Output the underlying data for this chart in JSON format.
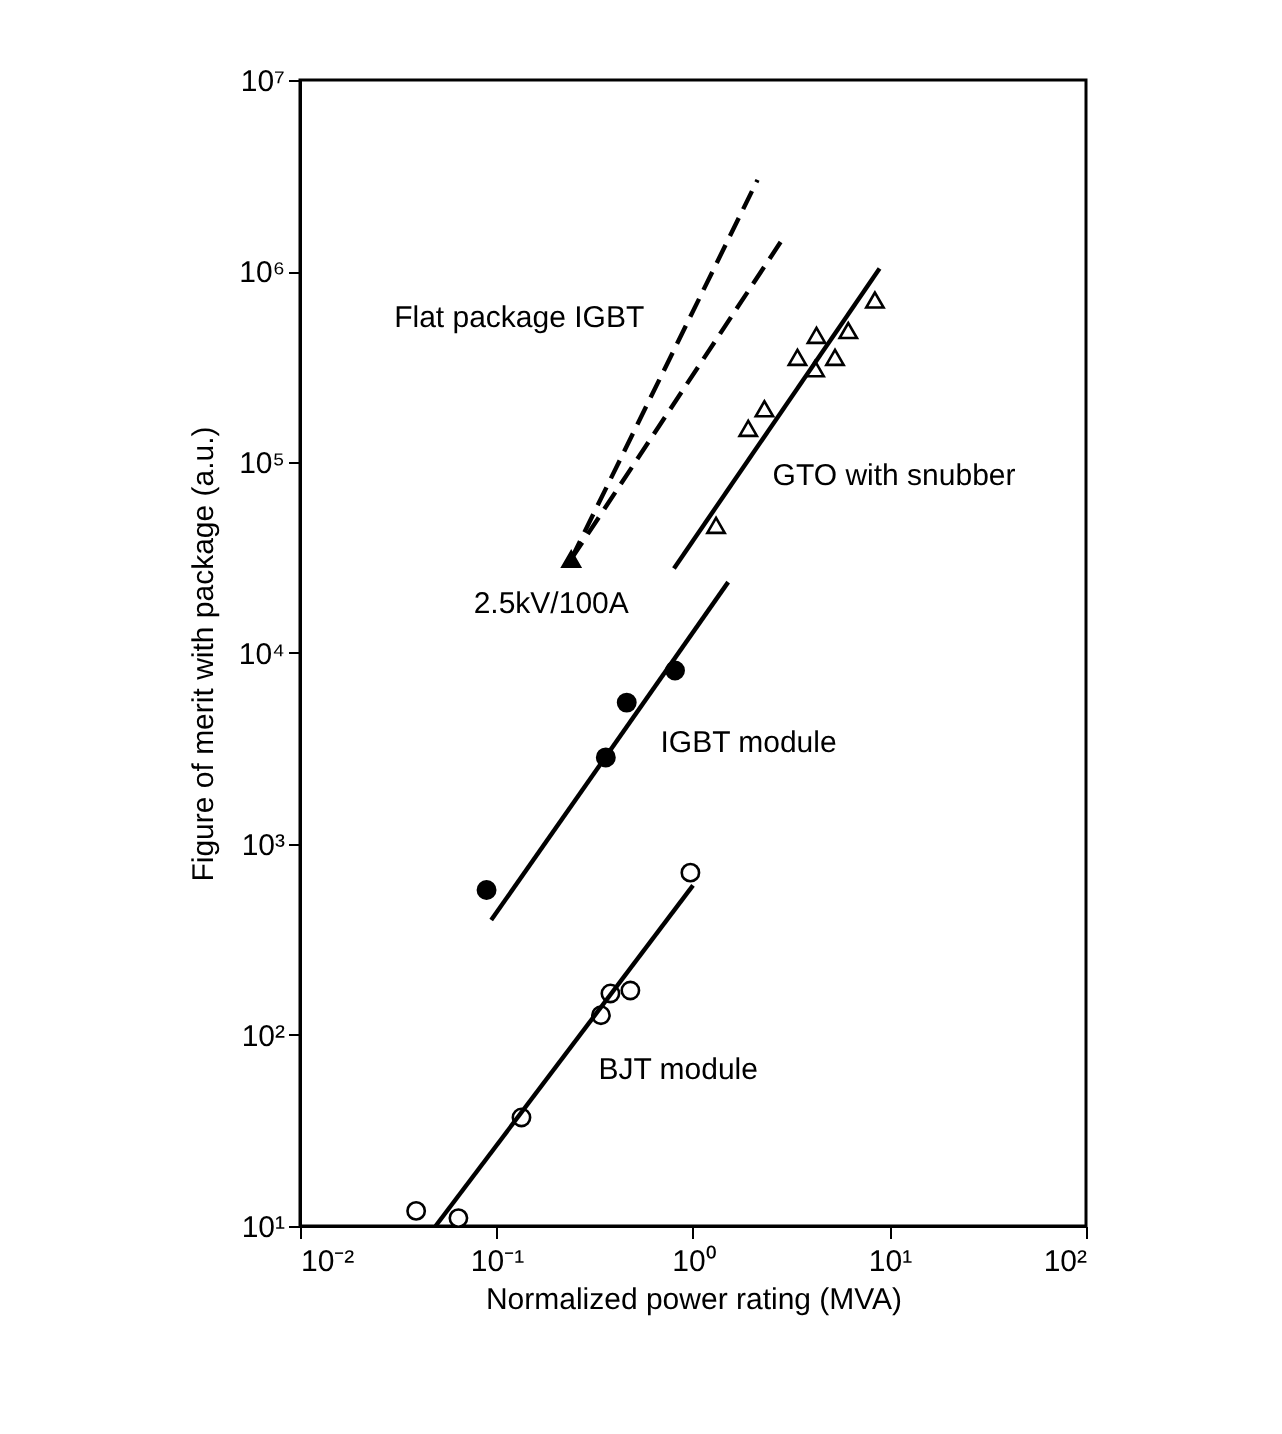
{
  "chart_data": {
    "type": "scatter",
    "xlabel": "Normalized power rating (MVA)",
    "ylabel": "Figure of merit with package (a.u.)",
    "log": "xy",
    "grid": false,
    "xlim": [
      0.01,
      100
    ],
    "ylim": [
      10,
      10000000
    ],
    "xticks": [
      {
        "value": 0.01,
        "label": "10⁻²"
      },
      {
        "value": 0.1,
        "label": "10⁻¹"
      },
      {
        "value": 1,
        "label": "10⁰"
      },
      {
        "value": 10,
        "label": "10¹"
      },
      {
        "value": 100,
        "label": "10²"
      }
    ],
    "yticks": [
      {
        "value": 10,
        "label": "10¹"
      },
      {
        "value": 100,
        "label": "10²"
      },
      {
        "value": 1000,
        "label": "10³"
      },
      {
        "value": 10000,
        "label": "10⁴"
      },
      {
        "value": 100000,
        "label": "10⁵"
      },
      {
        "value": 1000000,
        "label": "10⁶"
      },
      {
        "value": 10000000,
        "label": "10⁷"
      }
    ],
    "annotations": [
      {
        "text": "2.5kV/100A",
        "x": 0.24,
        "y": 31000
      }
    ],
    "series": [
      {
        "name": "Flat package IGBT",
        "type": "line",
        "line_style": "dashed",
        "color": "#000000",
        "x": [
          0.24,
          2.13
        ],
        "values": [
          31000,
          3000000
        ]
      },
      {
        "type": "line",
        "line_style": "dashed",
        "color": "#000000",
        "x": [
          0.24,
          2.87
        ],
        "values": [
          31000,
          1480000
        ]
      },
      {
        "marker": "triangle",
        "color": "#000000",
        "x": [
          0.24
        ],
        "values": [
          31000
        ]
      },
      {
        "name": "GTO with snubber",
        "marker": "triangle",
        "color": "#ffffff",
        "x": [
          1.31,
          1.91,
          2.31,
          3.4,
          4.25,
          4.18,
          5.28,
          6.17,
          8.43
        ],
        "values": [
          46600,
          150000,
          190000,
          353000,
          460000,
          308000,
          353000,
          488000,
          705000
        ]
      },
      {
        "type": "line",
        "line_style": "solid",
        "color": "#000000",
        "x": [
          0.8,
          8.9
        ],
        "values": [
          27700,
          1030000
        ]
      },
      {
        "name": "IGBT module",
        "marker": "circle",
        "color": "#000000",
        "x": [
          0.089,
          0.36,
          0.46,
          0.81
        ],
        "values": [
          574,
          2840,
          5500,
          8090
        ]
      },
      {
        "type": "line",
        "line_style": "solid",
        "color": "#000000",
        "x": [
          0.094,
          1.51
        ],
        "values": [
          400,
          23500
        ]
      },
      {
        "name": "BJT module",
        "marker": "circle",
        "color": "#ffffff",
        "x": [
          0.039,
          0.064,
          0.134,
          0.34,
          0.38,
          0.48,
          0.97
        ],
        "values": [
          12,
          11,
          37,
          127,
          165,
          171,
          708
        ]
      },
      {
        "type": "line",
        "line_style": "solid",
        "color": "#000000",
        "x": [
          0.049,
          1.0
        ],
        "values": [
          10,
          607
        ]
      }
    ]
  }
}
